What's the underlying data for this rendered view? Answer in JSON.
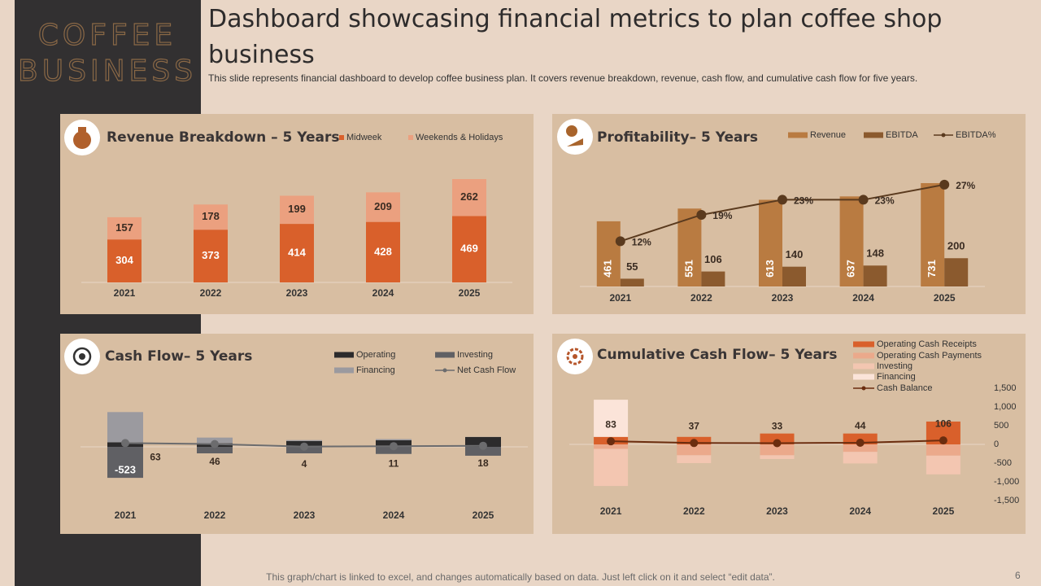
{
  "slide": {
    "brand": [
      "COFFEE",
      "BUSINESS"
    ],
    "title": "Dashboard showcasing financial metrics to plan coffee shop business",
    "subtitle": "This slide represents financial dashboard to develop coffee business plan. It covers revenue breakdown, revenue, cash flow, and cumulative cash flow for five years.",
    "footer": "This graph/chart is linked to excel, and changes automatically based on data. Just left click on it and select “edit data”.",
    "page": 6
  },
  "chart_data": [
    {
      "type": "bar",
      "title": "Revenue Breakdown – 5 Years",
      "stacked": true,
      "categories": [
        "2021",
        "2022",
        "2023",
        "2024",
        "2025"
      ],
      "series": [
        {
          "name": "Midweek",
          "color": "#d9602b",
          "values": [
            304,
            373,
            414,
            428,
            469
          ],
          "data_labels": true
        },
        {
          "name": "Weekends & Holidays",
          "color": "#eba07f",
          "values": [
            157,
            178,
            199,
            209,
            262
          ],
          "data_labels": true
        }
      ],
      "ylim": [
        0,
        800
      ]
    },
    {
      "type": "bar",
      "title": "Profitability– 5 Years",
      "stacked": false,
      "categories": [
        "2021",
        "2022",
        "2023",
        "2024",
        "2025"
      ],
      "series": [
        {
          "name": "Revenue",
          "color": "#b97b41",
          "values": [
            461,
            551,
            613,
            637,
            731
          ],
          "data_labels": true
        },
        {
          "name": "EBITDA",
          "color": "#8b5a2e",
          "values": [
            55,
            106,
            140,
            148,
            200
          ],
          "data_labels": true
        },
        {
          "name": "EBITDA%",
          "color": "#5a3a1e",
          "type": "line",
          "axis": "y2",
          "values": [
            12,
            19,
            23,
            23,
            27
          ],
          "value_labels": [
            "12%",
            "19%",
            "23%",
            "23%",
            "27%"
          ],
          "data_labels": true
        }
      ],
      "ylim": [
        0,
        800
      ],
      "y2lim": [
        0,
        30
      ]
    },
    {
      "type": "bar",
      "title": "Cash Flow– 5 Years",
      "stacked": true,
      "categories": [
        "2021",
        "2022",
        "2023",
        "2024",
        "2025"
      ],
      "series": [
        {
          "name": "Operating",
          "color": "#2c2b2c",
          "values": [
            76,
            60,
            96,
            110,
            165
          ]
        },
        {
          "name": "Investing",
          "color": "#606064",
          "values": [
            -523,
            -110,
            -110,
            -120,
            -150
          ],
          "value_labels": [
            "-523",
            null,
            null,
            null,
            null
          ]
        },
        {
          "name": "Financing",
          "color": "#9b9a9f",
          "values": [
            510,
            96,
            18,
            21,
            3
          ]
        },
        {
          "name": "Net Cash Flow",
          "color": "#6c6c6e",
          "type": "line",
          "values": [
            63,
            46,
            4,
            11,
            18
          ],
          "data_labels": true
        }
      ],
      "ylim": [
        -700,
        700
      ]
    },
    {
      "type": "bar",
      "title": "Cumulative Cash Flow– 5 Years",
      "stacked": true,
      "categories": [
        "2021",
        "2022",
        "2023",
        "2024",
        "2025"
      ],
      "series": [
        {
          "name": "Operating Cash Receipts",
          "color": "#d9602b",
          "values": [
            200,
            200,
            290,
            290,
            610
          ]
        },
        {
          "name": "Operating Cash Payments",
          "color": "#eba98b",
          "values": [
            -120,
            -290,
            -290,
            -200,
            -300
          ]
        },
        {
          "name": "Investing",
          "color": "#f3c6b1",
          "values": [
            -990,
            -210,
            -100,
            -310,
            -500
          ]
        },
        {
          "name": "Financing",
          "color": "#fbe4d9",
          "values": [
            993,
            0,
            0,
            0,
            0
          ]
        },
        {
          "name": "Cash Balance",
          "color": "#6b2d0f",
          "type": "line",
          "values": [
            83,
            37,
            33,
            44,
            106
          ],
          "data_labels": true
        }
      ],
      "ylim": [
        -1500,
        1500
      ],
      "yticks": [
        {
          "value": 1500,
          "label": "1,500"
        },
        {
          "value": 1000,
          "label": "1,000"
        },
        500,
        0,
        -500,
        {
          "value": -1000,
          "label": "-1,000"
        },
        {
          "value": -1500,
          "label": "-1,500"
        }
      ]
    }
  ]
}
